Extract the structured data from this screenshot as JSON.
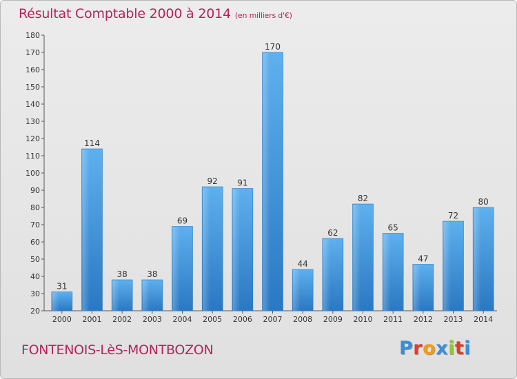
{
  "page": {
    "title": "Résultat Comptable 2000 à 2014",
    "subtitle": "(en milliers d'€)",
    "commune": "FONTENOIS-LèS-MONTBOZON",
    "logo_letters": [
      "P",
      "r",
      "o",
      "x",
      "i",
      "t",
      "i"
    ],
    "logo_colors": [
      "#3a8fd6",
      "#e23c2c",
      "#f39c12",
      "#3a8fd6",
      "#8dc63f",
      "#e23c2c",
      "#3a8fd6"
    ],
    "title_color": "#b5245a"
  },
  "chart_data": {
    "type": "bar",
    "title": "Résultat Comptable 2000 à 2014",
    "subtitle": "(en milliers d'€)",
    "xlabel": "",
    "ylabel": "",
    "categories": [
      "2000",
      "2001",
      "2002",
      "2003",
      "2004",
      "2005",
      "2006",
      "2007",
      "2008",
      "2009",
      "2010",
      "2011",
      "2012",
      "2013",
      "2014"
    ],
    "values": [
      31,
      114,
      38,
      38,
      69,
      92,
      91,
      170,
      44,
      62,
      82,
      65,
      47,
      72,
      80
    ],
    "ylim": [
      20,
      180
    ],
    "yticks": [
      20,
      30,
      40,
      50,
      60,
      70,
      80,
      90,
      100,
      110,
      120,
      130,
      140,
      150,
      160,
      170,
      180
    ],
    "grid": false,
    "bar_color": "#4a9be0",
    "legend": "none"
  }
}
